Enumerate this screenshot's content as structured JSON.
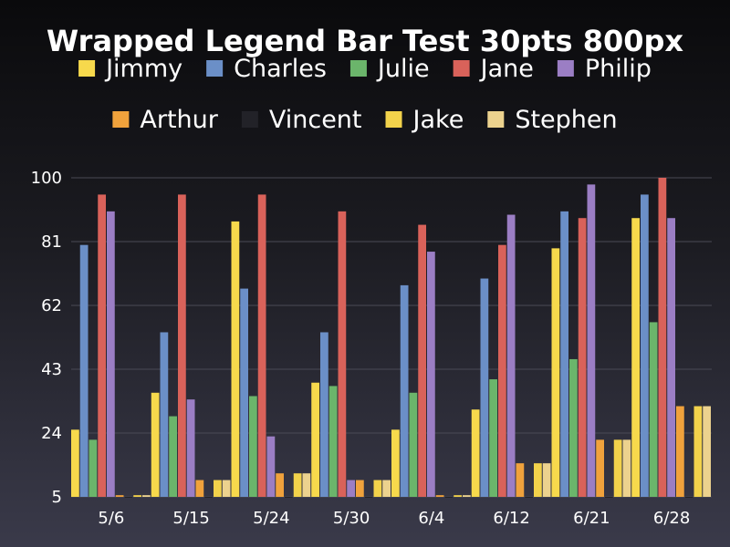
{
  "chart_data": {
    "type": "bar",
    "title": "Wrapped Legend Bar Test 30pts 800px",
    "xlabel": "",
    "ylabel": "",
    "categories": [
      "5/6",
      "5/15",
      "5/24",
      "5/30",
      "6/4",
      "6/12",
      "6/21",
      "6/28"
    ],
    "ylim": [
      5,
      100
    ],
    "yticks": [
      "5",
      "24",
      "43",
      "62",
      "81",
      "100"
    ],
    "grid": true,
    "legend_position": "top",
    "series": [
      {
        "name": "Jimmy",
        "color": "#f7d94c",
        "values": [
          25,
          36,
          87,
          39,
          25,
          31,
          79,
          88
        ]
      },
      {
        "name": "Charles",
        "color": "#6b8fc7",
        "values": [
          80,
          54,
          67,
          54,
          68,
          70,
          90,
          95
        ]
      },
      {
        "name": "Julie",
        "color": "#6bb56b",
        "values": [
          22,
          29,
          35,
          38,
          36,
          40,
          46,
          57
        ]
      },
      {
        "name": "Jane",
        "color": "#d9625a",
        "values": [
          95,
          95,
          95,
          90,
          86,
          80,
          88,
          100
        ]
      },
      {
        "name": "Philip",
        "color": "#9b7ec4",
        "values": [
          90,
          34,
          23,
          10,
          78,
          89,
          98,
          88
        ]
      },
      {
        "name": "Arthur",
        "color": "#f0a23c",
        "values": [
          5.5,
          10,
          12,
          10,
          5.5,
          15,
          22,
          32
        ]
      },
      {
        "name": "Vincent",
        "color": "#222228",
        "values": [
          5,
          5,
          5,
          5,
          5,
          5,
          5,
          5
        ]
      },
      {
        "name": "Jake",
        "color": "#f2d24b",
        "values": [
          5.5,
          10,
          12,
          10,
          5.5,
          15,
          22,
          32
        ]
      },
      {
        "name": "Stephen",
        "color": "#ecd28e",
        "values": [
          5.5,
          10,
          12,
          10,
          5.5,
          15,
          22,
          32
        ]
      }
    ]
  }
}
